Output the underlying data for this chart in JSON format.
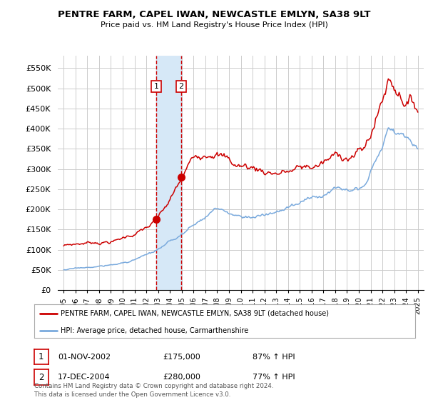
{
  "title": "PENTRE FARM, CAPEL IWAN, NEWCASTLE EMLYN, SA38 9LT",
  "subtitle": "Price paid vs. HM Land Registry's House Price Index (HPI)",
  "ylabel_ticks": [
    "£0",
    "£50K",
    "£100K",
    "£150K",
    "£200K",
    "£250K",
    "£300K",
    "£350K",
    "£400K",
    "£450K",
    "£500K",
    "£550K"
  ],
  "ytick_vals": [
    0,
    50000,
    100000,
    150000,
    200000,
    250000,
    300000,
    350000,
    400000,
    450000,
    500000,
    550000
  ],
  "ylim": [
    0,
    580000
  ],
  "sale1_date": 2002.83,
  "sale1_price": 175000,
  "sale1_label": "1",
  "sale2_date": 2004.96,
  "sale2_price": 280000,
  "sale2_label": "2",
  "highlight_xmin": 2002.83,
  "highlight_xmax": 2004.96,
  "highlight_color": "#d6e8f7",
  "vline_color": "#cc0000",
  "vline_style": "--",
  "line1_color": "#cc0000",
  "line2_color": "#7aaadd",
  "legend1_label": "PENTRE FARM, CAPEL IWAN, NEWCASTLE EMLYN, SA38 9LT (detached house)",
  "legend2_label": "HPI: Average price, detached house, Carmarthenshire",
  "table_entries": [
    {
      "num": "1",
      "date": "01-NOV-2002",
      "price": "£175,000",
      "hpi": "87% ↑ HPI"
    },
    {
      "num": "2",
      "date": "17-DEC-2004",
      "price": "£280,000",
      "hpi": "77% ↑ HPI"
    }
  ],
  "footer": "Contains HM Land Registry data © Crown copyright and database right 2024.\nThis data is licensed under the Open Government Licence v3.0.",
  "bg_color": "#ffffff",
  "plot_bg_color": "#ffffff",
  "grid_color": "#cccccc",
  "xlim_min": 1994.5,
  "xlim_max": 2025.5
}
